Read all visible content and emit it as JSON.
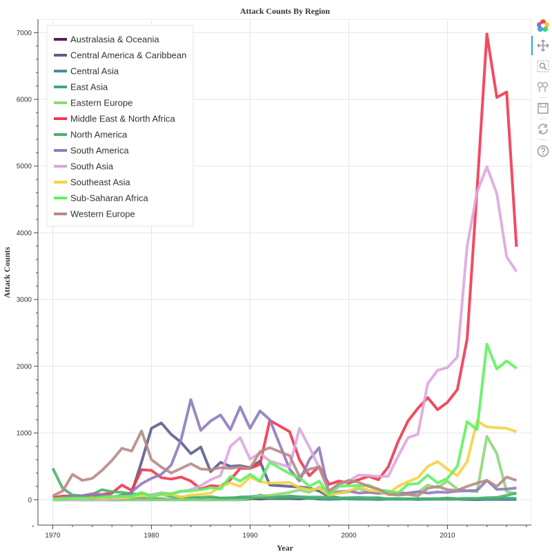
{
  "chart_data": {
    "type": "line",
    "title": "Attack Counts By Region",
    "xlabel": "Year",
    "ylabel": "Attack Counts",
    "xlim": [
      1968.5,
      2018.5
    ],
    "ylim": [
      -380,
      7200
    ],
    "x_ticks": [
      1970,
      1980,
      1990,
      2000,
      2010
    ],
    "y_ticks": [
      0,
      1000,
      2000,
      3000,
      4000,
      5000,
      6000,
      7000
    ],
    "grid": true,
    "legend_position": "top-left",
    "x": [
      1970,
      1971,
      1972,
      1973,
      1974,
      1975,
      1976,
      1977,
      1978,
      1979,
      1980,
      1981,
      1982,
      1983,
      1984,
      1985,
      1986,
      1987,
      1988,
      1989,
      1990,
      1991,
      1992,
      1994,
      1995,
      1996,
      1997,
      1998,
      1999,
      2000,
      2001,
      2002,
      2003,
      2004,
      2005,
      2006,
      2007,
      2008,
      2009,
      2010,
      2011,
      2012,
      2013,
      2014,
      2015,
      2016,
      2017
    ],
    "series": [
      {
        "name": "Australasia & Oceania",
        "color": "#5c1a5c",
        "values": [
          1,
          1,
          8,
          1,
          1,
          8,
          0,
          1,
          10,
          12,
          2,
          12,
          3,
          8,
          14,
          11,
          15,
          15,
          16,
          21,
          18,
          12,
          19,
          18,
          14,
          23,
          10,
          11,
          12,
          20,
          16,
          9,
          6,
          11,
          12,
          12,
          7,
          14,
          9,
          15,
          10,
          5,
          2,
          8,
          6,
          7,
          8
        ]
      },
      {
        "name": "Central America & Caribbean",
        "color": "#5a5f8c",
        "values": [
          7,
          5,
          4,
          15,
          28,
          38,
          38,
          66,
          100,
          570,
          1070,
          1150,
          980,
          860,
          690,
          790,
          420,
          560,
          500,
          510,
          480,
          580,
          220,
          200,
          190,
          175,
          130,
          50,
          30,
          12,
          10,
          10,
          10,
          12,
          8,
          10,
          5,
          8,
          9,
          8,
          8,
          5,
          6,
          10,
          11,
          6,
          6
        ]
      },
      {
        "name": "Central Asia",
        "color": "#4a8a99",
        "values": [
          0,
          0,
          0,
          0,
          0,
          0,
          0,
          0,
          0,
          0,
          0,
          0,
          0,
          0,
          0,
          0,
          0,
          0,
          0,
          0,
          10,
          70,
          40,
          50,
          30,
          20,
          15,
          6,
          10,
          25,
          10,
          15,
          20,
          15,
          15,
          10,
          10,
          7,
          8,
          10,
          10,
          15,
          8,
          5,
          8,
          10,
          10
        ]
      },
      {
        "name": "East Asia",
        "color": "#3aa88a",
        "values": [
          0,
          2,
          5,
          18,
          8,
          32,
          18,
          45,
          25,
          20,
          20,
          12,
          4,
          12,
          12,
          9,
          25,
          20,
          22,
          40,
          45,
          60,
          24,
          26,
          30,
          20,
          22,
          10,
          12,
          14,
          10,
          8,
          10,
          12,
          8,
          10,
          10,
          12,
          10,
          9,
          8,
          6,
          10,
          20,
          15,
          22,
          18
        ]
      },
      {
        "name": "Eastern Europe",
        "color": "#8fd67a",
        "values": [
          0,
          0,
          0,
          0,
          0,
          0,
          0,
          0,
          1,
          0,
          0,
          1,
          0,
          0,
          0,
          1,
          1,
          1,
          1,
          1,
          25,
          60,
          65,
          110,
          145,
          110,
          190,
          120,
          100,
          120,
          170,
          120,
          95,
          100,
          90,
          90,
          110,
          220,
          180,
          280,
          160,
          135,
          120,
          950,
          690,
          120,
          90
        ]
      },
      {
        "name": "Middle East & North Africa",
        "color": "#f0374f",
        "values": [
          30,
          55,
          55,
          45,
          60,
          80,
          100,
          220,
          140,
          450,
          440,
          330,
          310,
          340,
          280,
          160,
          210,
          200,
          300,
          470,
          470,
          530,
          1190,
          1020,
          600,
          360,
          500,
          230,
          280,
          250,
          300,
          350,
          300,
          490,
          870,
          1180,
          1370,
          1530,
          1350,
          1460,
          1650,
          2410,
          4650,
          6980,
          6030,
          6110,
          3790
        ]
      },
      {
        "name": "North America",
        "color": "#4fb06c",
        "values": [
          470,
          170,
          70,
          60,
          80,
          150,
          120,
          110,
          90,
          80,
          70,
          80,
          50,
          40,
          40,
          35,
          45,
          25,
          30,
          30,
          25,
          25,
          30,
          55,
          45,
          40,
          40,
          40,
          25,
          30,
          35,
          30,
          32,
          10,
          15,
          15,
          15,
          15,
          15,
          25,
          15,
          20,
          20,
          30,
          35,
          65,
          100
        ]
      },
      {
        "name": "South America",
        "color": "#8f7bbc",
        "values": [
          15,
          35,
          45,
          60,
          90,
          75,
          50,
          20,
          120,
          240,
          320,
          380,
          520,
          900,
          1500,
          1040,
          1180,
          1270,
          1050,
          1390,
          1070,
          1330,
          1200,
          460,
          280,
          600,
          780,
          90,
          120,
          130,
          100,
          110,
          100,
          120,
          100,
          100,
          120,
          100,
          115,
          110,
          130,
          135,
          140,
          290,
          155,
          160,
          175
        ]
      },
      {
        "name": "South Asia",
        "color": "#dba7de",
        "values": [
          2,
          1,
          3,
          5,
          5,
          6,
          12,
          20,
          45,
          55,
          75,
          105,
          90,
          120,
          150,
          210,
          300,
          360,
          800,
          930,
          610,
          700,
          580,
          490,
          1070,
          790,
          480,
          120,
          230,
          280,
          370,
          360,
          350,
          350,
          650,
          930,
          980,
          1740,
          1940,
          1980,
          2140,
          3800,
          4610,
          4990,
          4590,
          3640,
          3420
        ]
      },
      {
        "name": "Southeast Asia",
        "color": "#f5d046",
        "values": [
          10,
          15,
          20,
          20,
          30,
          20,
          40,
          30,
          45,
          60,
          50,
          70,
          80,
          40,
          70,
          80,
          100,
          200,
          250,
          200,
          340,
          270,
          250,
          260,
          180,
          150,
          170,
          70,
          100,
          130,
          200,
          140,
          130,
          90,
          200,
          270,
          330,
          500,
          570,
          460,
          360,
          570,
          1180,
          1090,
          1080,
          1070,
          1020
        ]
      },
      {
        "name": "Sub-Saharan Africa",
        "color": "#5ff25f",
        "values": [
          0,
          10,
          20,
          25,
          20,
          40,
          45,
          55,
          50,
          110,
          50,
          90,
          90,
          130,
          130,
          150,
          180,
          160,
          350,
          280,
          380,
          280,
          560,
          390,
          330,
          200,
          280,
          80,
          200,
          210,
          210,
          220,
          150,
          130,
          100,
          230,
          240,
          370,
          250,
          320,
          500,
          1170,
          1050,
          2330,
          1960,
          2080,
          1970
        ]
      },
      {
        "name": "Western Europe",
        "color": "#b88a86",
        "values": [
          60,
          130,
          380,
          290,
          320,
          440,
          590,
          770,
          730,
          1030,
          600,
          490,
          400,
          470,
          540,
          460,
          450,
          480,
          470,
          490,
          470,
          720,
          780,
          660,
          350,
          460,
          490,
          130,
          240,
          290,
          260,
          200,
          160,
          80,
          70,
          80,
          60,
          170,
          200,
          150,
          140,
          200,
          250,
          290,
          200,
          340,
          290
        ]
      }
    ]
  },
  "toolbar": {
    "tools": [
      "bokeh-logo-icon",
      "pan-icon",
      "box-zoom-icon",
      "wheel-zoom-icon",
      "save-icon",
      "reset-icon",
      "help-icon"
    ]
  }
}
